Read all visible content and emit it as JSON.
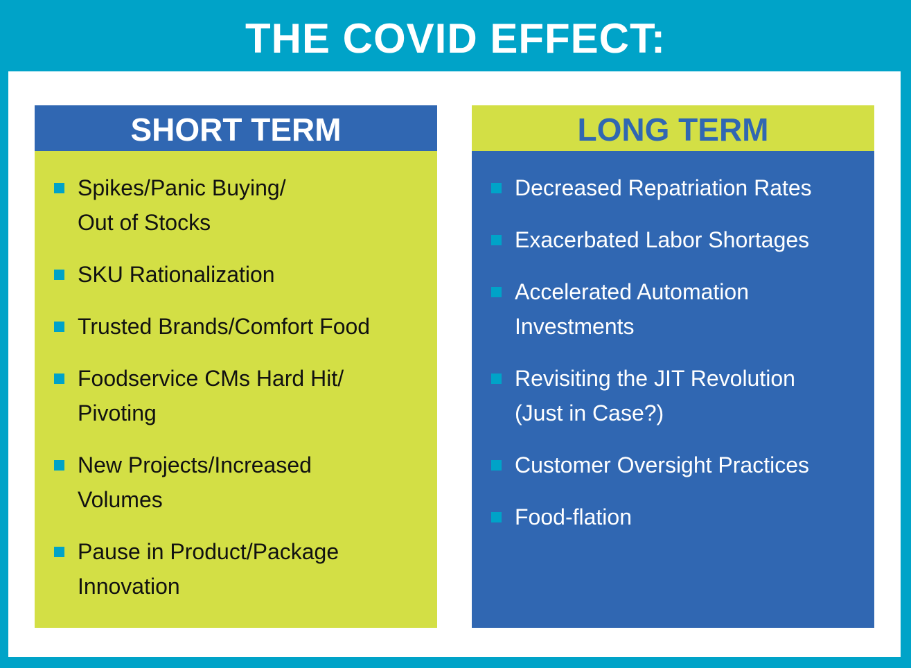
{
  "title": "THE COVID EFFECT:",
  "colors": {
    "frame": "#00a3c8",
    "blue": "#3067b2",
    "lime": "#d3df45",
    "bullet": "#00a3c8"
  },
  "short_term": {
    "heading": "SHORT TERM",
    "items": [
      {
        "lines": [
          "Spikes/Panic Buying/",
          "Out of Stocks"
        ]
      },
      {
        "lines": [
          "SKU Rationalization"
        ]
      },
      {
        "lines": [
          "Trusted Brands/Comfort Food"
        ]
      },
      {
        "lines": [
          "Foodservice CMs Hard Hit/",
          "Pivoting"
        ]
      },
      {
        "lines": [
          "New Projects/Increased",
          "Volumes"
        ]
      },
      {
        "lines": [
          "Pause in Product/Package",
          "Innovation"
        ]
      }
    ]
  },
  "long_term": {
    "heading": "LONG TERM",
    "items": [
      {
        "lines": [
          "Decreased Repatriation Rates"
        ]
      },
      {
        "lines": [
          "Exacerbated Labor Shortages"
        ]
      },
      {
        "lines": [
          "Accelerated Automation",
          "Investments"
        ]
      },
      {
        "lines": [
          "Revisiting the JIT Revolution",
          "(Just in Case?)"
        ]
      },
      {
        "lines": [
          "Customer Oversight Practices"
        ]
      },
      {
        "lines": [
          "Food-flation"
        ]
      }
    ]
  }
}
